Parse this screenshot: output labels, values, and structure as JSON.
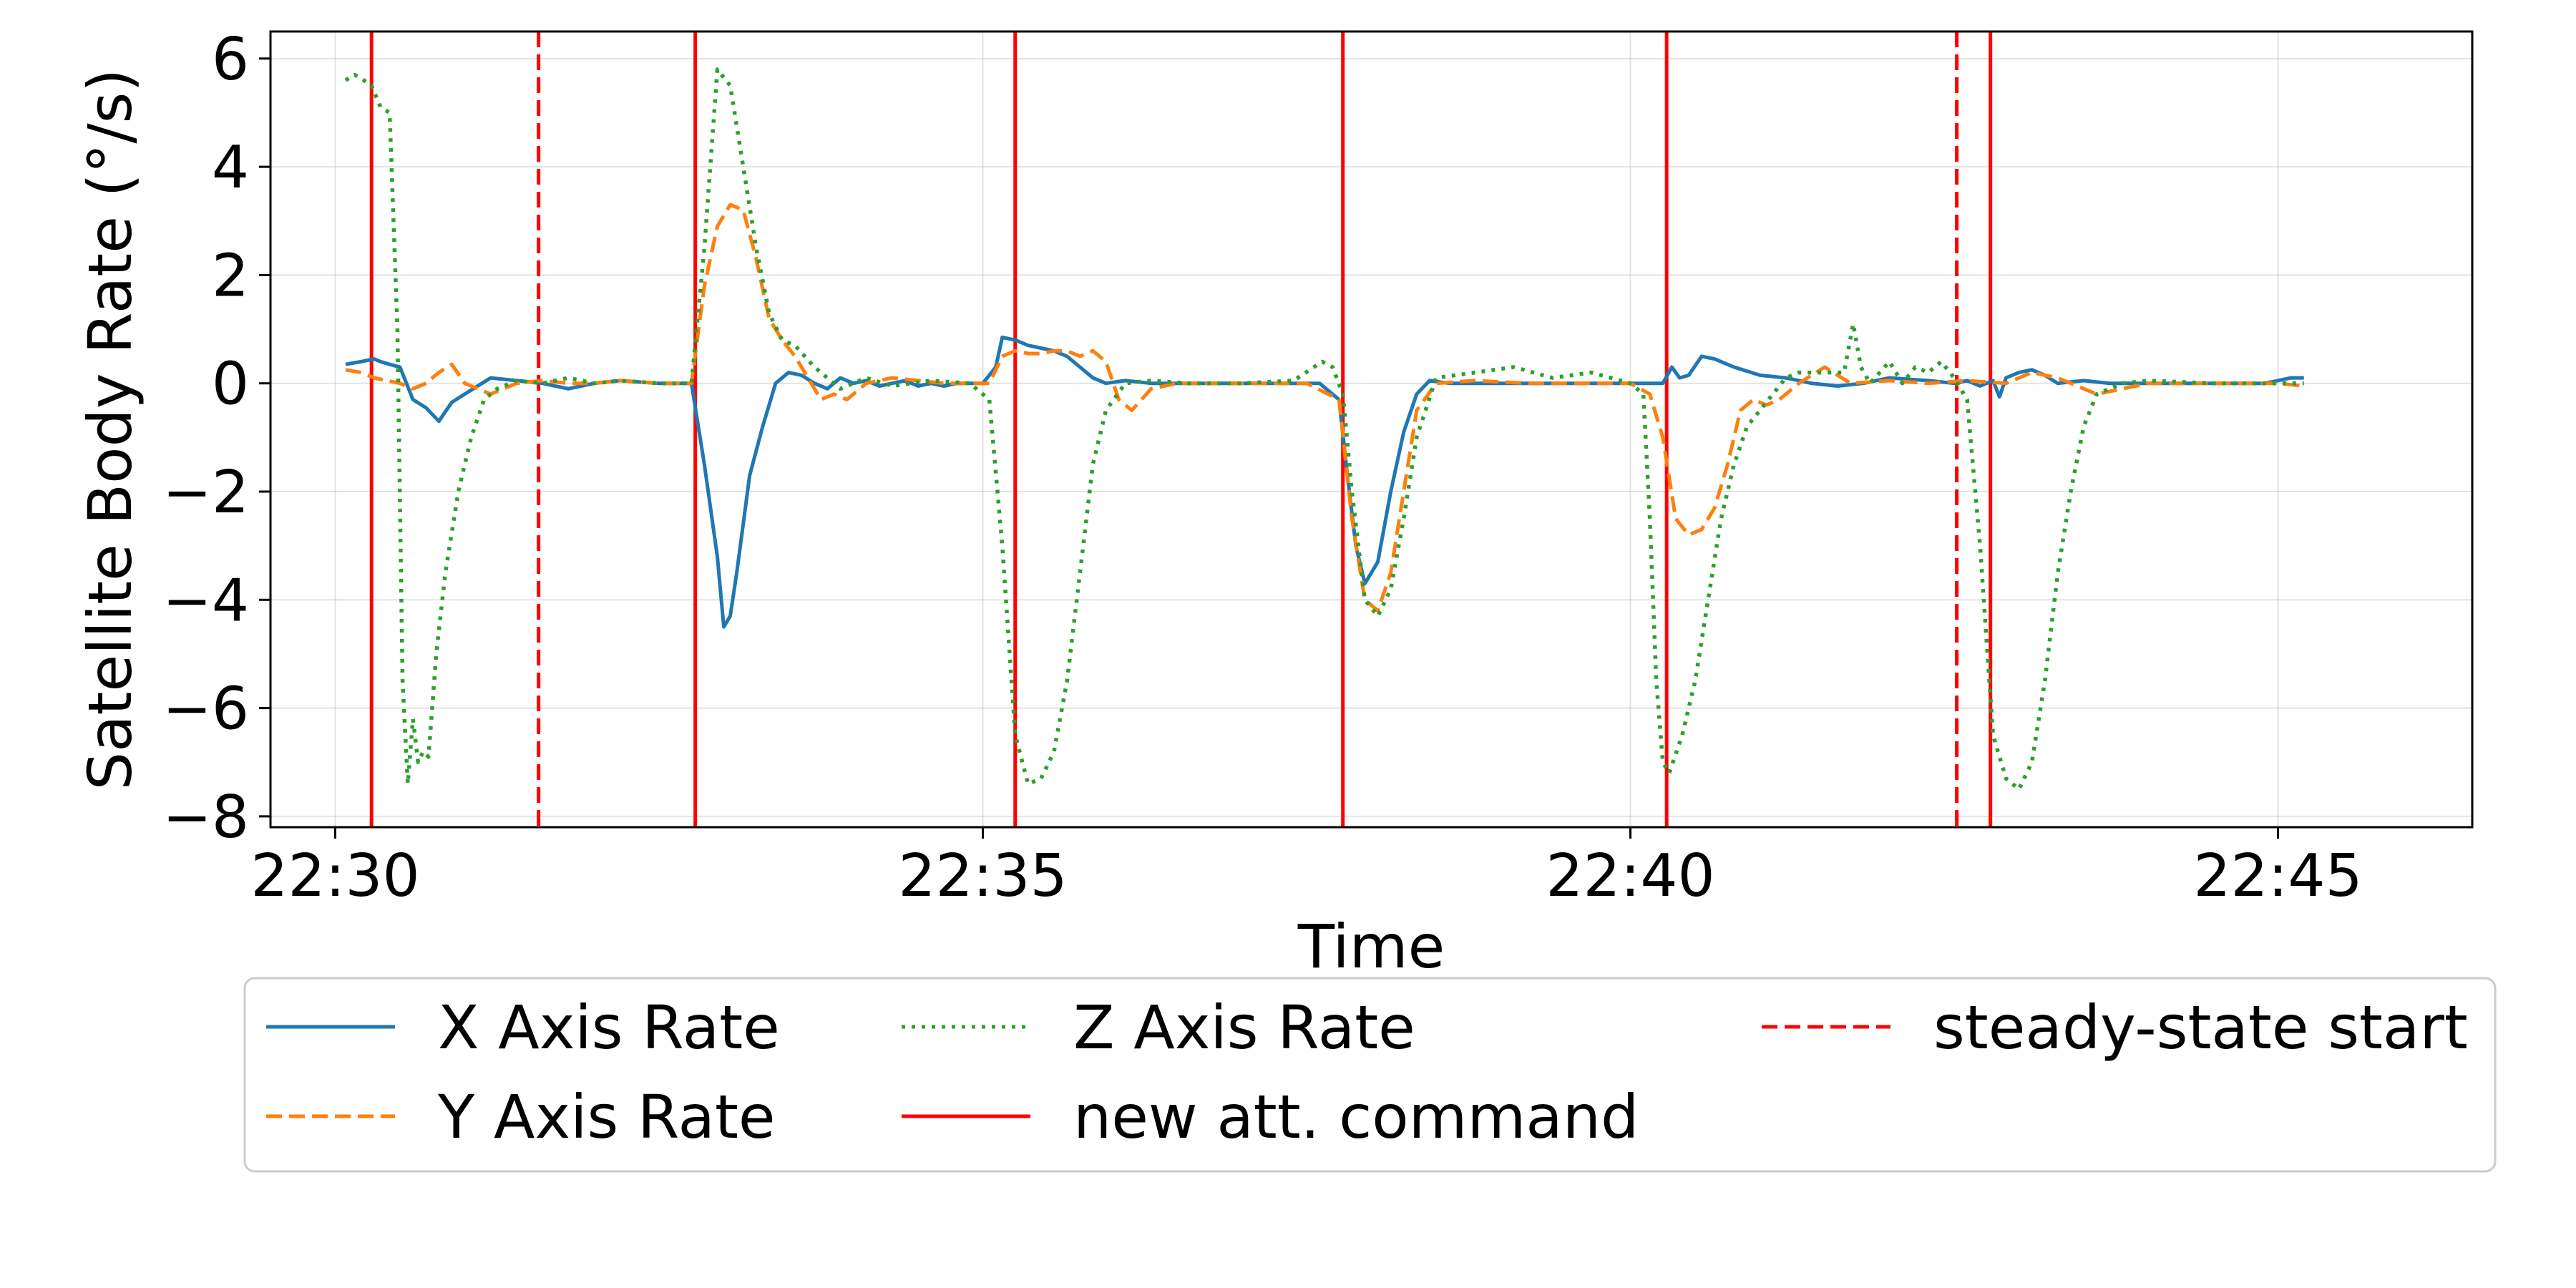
{
  "chart_data": {
    "type": "line",
    "title": "",
    "xlabel": "Time",
    "ylabel": "Satellite Body Rate (°/s)",
    "xlim": [
      -0.5,
      16.5
    ],
    "ylim": [
      -8.2,
      6.5
    ],
    "x_unit": "minutes after 22:30",
    "x_ticks": [
      {
        "value": 0,
        "label": "22:30"
      },
      {
        "value": 5,
        "label": "22:35"
      },
      {
        "value": 10,
        "label": "22:40"
      },
      {
        "value": 15,
        "label": "22:45"
      }
    ],
    "y_ticks": [
      {
        "value": 6,
        "label": "6"
      },
      {
        "value": 4,
        "label": "4"
      },
      {
        "value": 2,
        "label": "2"
      },
      {
        "value": 0,
        "label": "0"
      },
      {
        "value": -2,
        "label": "−2"
      },
      {
        "value": -4,
        "label": "−4"
      },
      {
        "value": -6,
        "label": "−6"
      },
      {
        "value": -8,
        "label": "−8"
      }
    ],
    "grid": true,
    "legend_position": "below",
    "series": [
      {
        "name": "X Axis Rate",
        "color": "#1f77b4",
        "style": "solid",
        "x": [
          0.08,
          0.2,
          0.3,
          0.35,
          0.42,
          0.5,
          0.6,
          0.7,
          0.8,
          0.9,
          1.0,
          1.2,
          1.4,
          1.6,
          1.8,
          2.0,
          2.2,
          2.5,
          2.75,
          2.85,
          2.95,
          3.0,
          3.05,
          3.1,
          3.2,
          3.3,
          3.4,
          3.5,
          3.6,
          3.7,
          3.8,
          3.9,
          4.0,
          4.1,
          4.2,
          4.3,
          4.4,
          4.5,
          4.6,
          4.7,
          4.8,
          4.9,
          5.0,
          5.1,
          5.15,
          5.25,
          5.35,
          5.45,
          5.55,
          5.65,
          5.75,
          5.85,
          5.95,
          6.1,
          6.3,
          6.6,
          7.0,
          7.3,
          7.6,
          7.75,
          7.82,
          7.88,
          7.95,
          8.05,
          8.15,
          8.25,
          8.35,
          8.45,
          8.6,
          8.8,
          9.1,
          9.4,
          9.7,
          10.0,
          10.25,
          10.32,
          10.38,
          10.45,
          10.55,
          10.65,
          10.8,
          11.0,
          11.2,
          11.4,
          11.6,
          11.8,
          12.0,
          12.3,
          12.5,
          12.6,
          12.7,
          12.8,
          12.85,
          12.9,
          13.0,
          13.1,
          13.2,
          13.3,
          13.5,
          13.7,
          14.0,
          14.3,
          14.6,
          14.9,
          15.1,
          15.2
        ],
        "y": [
          0.35,
          0.4,
          0.45,
          0.4,
          0.35,
          0.3,
          -0.3,
          -0.45,
          -0.7,
          -0.35,
          -0.2,
          0.1,
          0.05,
          0.0,
          -0.1,
          0.0,
          0.05,
          0.0,
          0.0,
          -1.5,
          -3.2,
          -4.5,
          -4.3,
          -3.5,
          -1.7,
          -0.8,
          0.0,
          0.2,
          0.15,
          0.0,
          -0.1,
          0.1,
          0.0,
          0.05,
          -0.05,
          0.0,
          0.05,
          -0.05,
          0.0,
          -0.05,
          0.0,
          0.0,
          0.0,
          0.3,
          0.85,
          0.8,
          0.7,
          0.65,
          0.6,
          0.5,
          0.3,
          0.1,
          0.0,
          0.05,
          0.0,
          0.0,
          0.0,
          0.0,
          0.0,
          -0.3,
          -1.8,
          -3.0,
          -3.7,
          -3.3,
          -2.0,
          -0.9,
          -0.2,
          0.05,
          0.0,
          0.0,
          0.0,
          0.0,
          0.0,
          0.0,
          0.0,
          0.3,
          0.1,
          0.15,
          0.5,
          0.45,
          0.3,
          0.15,
          0.1,
          0.0,
          -0.05,
          0.0,
          0.1,
          0.05,
          0.0,
          0.05,
          -0.05,
          0.05,
          -0.25,
          0.1,
          0.2,
          0.25,
          0.15,
          0.0,
          0.05,
          0.0,
          0.0,
          0.0,
          0.0,
          0.0,
          0.1,
          0.1
        ]
      },
      {
        "name": "Y Axis Rate",
        "color": "#ff7f0e",
        "style": "dashed",
        "x": [
          0.08,
          0.2,
          0.3,
          0.4,
          0.5,
          0.6,
          0.7,
          0.8,
          0.9,
          1.0,
          1.2,
          1.4,
          1.6,
          1.8,
          2.0,
          2.2,
          2.5,
          2.75,
          2.85,
          2.95,
          3.05,
          3.15,
          3.25,
          3.35,
          3.45,
          3.55,
          3.65,
          3.75,
          3.85,
          3.95,
          4.1,
          4.3,
          4.5,
          4.7,
          4.9,
          5.05,
          5.15,
          5.25,
          5.35,
          5.45,
          5.55,
          5.65,
          5.75,
          5.85,
          5.95,
          6.05,
          6.15,
          6.3,
          6.5,
          7.0,
          7.5,
          7.75,
          7.85,
          7.95,
          8.05,
          8.15,
          8.25,
          8.35,
          8.5,
          8.8,
          9.2,
          9.6,
          10.0,
          10.15,
          10.25,
          10.35,
          10.45,
          10.55,
          10.65,
          10.75,
          10.85,
          10.95,
          11.05,
          11.15,
          11.3,
          11.5,
          11.7,
          12.0,
          12.3,
          12.6,
          12.9,
          13.1,
          13.3,
          13.6,
          14.0,
          14.5,
          15.0,
          15.2
        ],
        "y": [
          0.25,
          0.2,
          0.1,
          0.05,
          0.0,
          -0.1,
          0.0,
          0.2,
          0.35,
          0.0,
          -0.2,
          0.0,
          0.05,
          0.0,
          0.0,
          0.05,
          0.0,
          0.0,
          1.8,
          2.9,
          3.3,
          3.2,
          2.3,
          1.2,
          0.8,
          0.5,
          0.1,
          -0.3,
          -0.2,
          -0.3,
          0.0,
          0.1,
          0.05,
          0.0,
          0.0,
          0.0,
          0.5,
          0.6,
          0.55,
          0.55,
          0.6,
          0.6,
          0.5,
          0.6,
          0.4,
          -0.3,
          -0.5,
          -0.1,
          0.0,
          0.0,
          0.0,
          -0.3,
          -2.5,
          -4.0,
          -4.2,
          -3.5,
          -2.0,
          -0.5,
          0.0,
          0.05,
          0.0,
          0.0,
          0.0,
          -0.2,
          -1.0,
          -2.5,
          -2.8,
          -2.7,
          -2.3,
          -1.5,
          -0.5,
          -0.3,
          -0.4,
          -0.3,
          0.0,
          0.3,
          0.0,
          0.05,
          0.0,
          0.05,
          0.0,
          0.2,
          0.1,
          -0.2,
          0.0,
          0.0,
          0.0,
          -0.05
        ]
      },
      {
        "name": "Z Axis Rate",
        "color": "#2ca02c",
        "style": "dotted",
        "x": [
          0.08,
          0.15,
          0.22,
          0.28,
          0.35,
          0.42,
          0.48,
          0.52,
          0.56,
          0.6,
          0.64,
          0.68,
          0.72,
          0.78,
          0.85,
          0.95,
          1.05,
          1.15,
          1.25,
          1.4,
          1.6,
          1.8,
          2.0,
          2.2,
          2.5,
          2.75,
          2.85,
          2.95,
          3.05,
          3.15,
          3.25,
          3.35,
          3.45,
          3.55,
          3.7,
          3.9,
          4.1,
          4.3,
          4.6,
          4.9,
          5.05,
          5.15,
          5.25,
          5.35,
          5.45,
          5.55,
          5.65,
          5.75,
          5.85,
          5.95,
          6.1,
          6.3,
          6.6,
          7.0,
          7.4,
          7.62,
          7.7,
          7.78,
          7.85,
          7.95,
          8.05,
          8.15,
          8.25,
          8.35,
          8.5,
          8.8,
          9.1,
          9.4,
          9.7,
          10.0,
          10.1,
          10.15,
          10.2,
          10.25,
          10.3,
          10.4,
          10.5,
          10.6,
          10.7,
          10.8,
          10.9,
          11.0,
          11.1,
          11.2,
          11.3,
          11.5,
          11.65,
          11.72,
          11.78,
          11.85,
          12.0,
          12.1,
          12.2,
          12.3,
          12.4,
          12.5,
          12.6,
          12.7,
          12.8,
          12.9,
          13.0,
          13.1,
          13.2,
          13.3,
          13.4,
          13.5,
          13.6,
          13.8,
          14.0,
          14.5,
          15.0,
          15.2
        ],
        "y": [
          5.6,
          5.7,
          5.6,
          5.5,
          5.1,
          5.0,
          1.0,
          -5.5,
          -7.4,
          -6.2,
          -7.0,
          -6.8,
          -6.9,
          -5.0,
          -3.5,
          -2.0,
          -1.0,
          -0.3,
          -0.1,
          0.05,
          0.0,
          0.1,
          0.0,
          0.05,
          0.0,
          0.0,
          2.5,
          5.8,
          5.5,
          4.0,
          2.5,
          1.3,
          0.8,
          0.7,
          0.3,
          -0.1,
          0.1,
          -0.05,
          0.05,
          0.0,
          -0.3,
          -3.0,
          -6.5,
          -7.4,
          -7.3,
          -6.8,
          -5.5,
          -3.5,
          -1.5,
          -0.5,
          0.0,
          0.05,
          0.0,
          0.0,
          0.05,
          0.4,
          0.3,
          -0.2,
          -2.0,
          -4.0,
          -4.3,
          -3.8,
          -2.5,
          -1.0,
          0.1,
          0.2,
          0.3,
          0.1,
          0.2,
          0.0,
          -0.2,
          -2.5,
          -5.5,
          -7.0,
          -7.2,
          -6.5,
          -5.5,
          -4.0,
          -2.5,
          -1.5,
          -0.8,
          -0.5,
          -0.2,
          0.1,
          0.2,
          0.2,
          0.2,
          1.1,
          0.3,
          0.0,
          0.4,
          0.0,
          0.3,
          0.2,
          0.4,
          0.1,
          -0.3,
          -3.0,
          -6.5,
          -7.3,
          -7.5,
          -7.0,
          -5.5,
          -3.5,
          -2.0,
          -0.8,
          -0.2,
          0.0,
          0.05,
          0.0,
          0.0,
          0.0
        ]
      }
    ],
    "vlines": [
      {
        "x": 0.28,
        "style": "solid",
        "color": "#ff0000",
        "kind": "new att. command"
      },
      {
        "x": 1.57,
        "style": "dashed",
        "color": "#ff0000",
        "kind": "steady-state start"
      },
      {
        "x": 2.78,
        "style": "solid",
        "color": "#ff0000",
        "kind": "new att. command"
      },
      {
        "x": 5.25,
        "style": "solid",
        "color": "#ff0000",
        "kind": "new att. command"
      },
      {
        "x": 7.78,
        "style": "solid",
        "color": "#ff0000",
        "kind": "new att. command"
      },
      {
        "x": 10.28,
        "style": "solid",
        "color": "#ff0000",
        "kind": "new att. command"
      },
      {
        "x": 12.52,
        "style": "dashed",
        "color": "#ff0000",
        "kind": "steady-state start"
      },
      {
        "x": 12.78,
        "style": "solid",
        "color": "#ff0000",
        "kind": "new att. command"
      }
    ],
    "legend": [
      {
        "label": "X Axis Rate",
        "color": "#1f77b4",
        "style": "solid"
      },
      {
        "label": "Y Axis Rate",
        "color": "#ff7f0e",
        "style": "dashed"
      },
      {
        "label": "Z Axis Rate",
        "color": "#2ca02c",
        "style": "dotted"
      },
      {
        "label": "new att. command",
        "color": "#ff0000",
        "style": "solid"
      },
      {
        "label": "steady-state start",
        "color": "#ff0000",
        "style": "dashed"
      }
    ]
  }
}
